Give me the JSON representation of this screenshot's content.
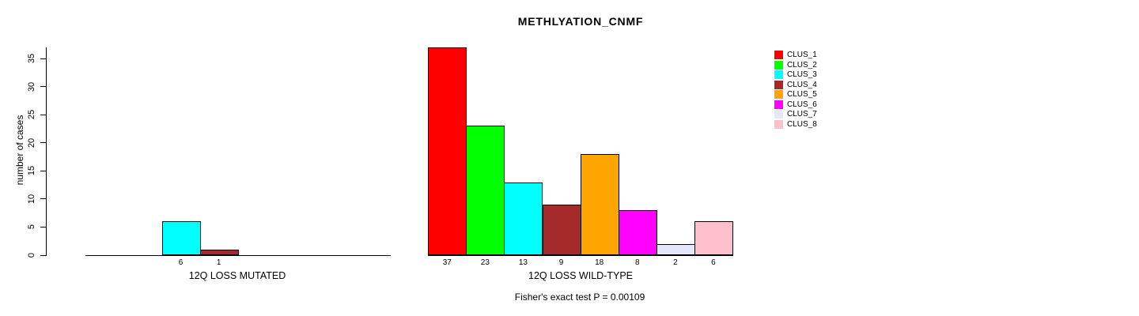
{
  "chart_data": {
    "type": "bar",
    "title": "METHLYATION_CNMF",
    "ylabel": "number of cases",
    "xlabel": "",
    "ylim": [
      0,
      35
    ],
    "yticks": [
      0,
      5,
      10,
      15,
      20,
      25,
      30,
      35
    ],
    "grid": false,
    "legend_position": "right",
    "bar_value_labels_shown": true,
    "categories": [
      "12Q LOSS MUTATED",
      "12Q LOSS WILD-TYPE"
    ],
    "series": [
      {
        "name": "CLUS_1",
        "color": "#FF0000",
        "values": [
          0,
          37
        ]
      },
      {
        "name": "CLUS_2",
        "color": "#00FF00",
        "values": [
          0,
          23
        ]
      },
      {
        "name": "CLUS_3",
        "color": "#00FFFF",
        "values": [
          6,
          13
        ]
      },
      {
        "name": "CLUS_4",
        "color": "#A52A2A",
        "values": [
          1,
          9
        ]
      },
      {
        "name": "CLUS_5",
        "color": "#FFA500",
        "values": [
          0,
          18
        ]
      },
      {
        "name": "CLUS_6",
        "color": "#FF00FF",
        "values": [
          0,
          8
        ]
      },
      {
        "name": "CLUS_7",
        "color": "#E6E6FA",
        "values": [
          0,
          2
        ]
      },
      {
        "name": "CLUS_8",
        "color": "#FFC0CB",
        "values": [
          0,
          6
        ]
      }
    ],
    "annotation": "Fisher's exact test P = 0.00109",
    "colors": {
      "background": "#FFFFFF",
      "axis": "#000000",
      "text": "#000000"
    }
  }
}
